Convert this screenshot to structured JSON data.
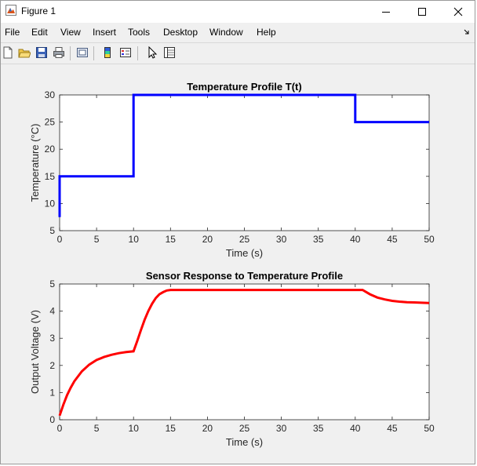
{
  "window": {
    "title": "Figure 1",
    "controls": {
      "minimize": "minimize",
      "maximize": "maximize",
      "close": "close"
    }
  },
  "menu": [
    "File",
    "Edit",
    "View",
    "Insert",
    "Tools",
    "Desktop",
    "Window",
    "Help"
  ],
  "toolbar_icons": [
    "new-figure-icon",
    "open-file-icon",
    "save-icon",
    "print-icon",
    "link-plot-icon",
    "insert-colorbar-icon",
    "insert-legend-icon",
    "edit-plot-icon",
    "property-inspector-icon"
  ],
  "colors": {
    "series1": "#0000ff",
    "series2": "#ff0000",
    "axes_bg": "#ffffff",
    "figure_bg": "#f0f0f0"
  },
  "chart_data": [
    {
      "type": "line",
      "title": "Temperature Profile T(t)",
      "xlabel": "Time (s)",
      "ylabel": "Temperature (°C)",
      "xlim": [
        0,
        50
      ],
      "ylim": [
        5,
        30
      ],
      "xticks": [
        0,
        5,
        10,
        15,
        20,
        25,
        30,
        35,
        40,
        45,
        50
      ],
      "yticks": [
        5,
        10,
        15,
        20,
        25,
        30
      ],
      "grid": false,
      "series": [
        {
          "color": "#0000ff",
          "x": [
            0,
            0,
            10,
            10,
            40,
            40,
            50
          ],
          "y": [
            7.5,
            15,
            15,
            30,
            30,
            25,
            25
          ]
        }
      ]
    },
    {
      "type": "line",
      "title": "Sensor Response to Temperature Profile",
      "xlabel": "Time (s)",
      "ylabel": "Output Voltage (V)",
      "xlim": [
        0,
        50
      ],
      "ylim": [
        0,
        5
      ],
      "xticks": [
        0,
        5,
        10,
        15,
        20,
        25,
        30,
        35,
        40,
        45,
        50
      ],
      "yticks": [
        0,
        1,
        2,
        3,
        4,
        5
      ],
      "grid": false,
      "series": [
        {
          "color": "#ff0000",
          "x": [
            0,
            0.5,
            1,
            1.5,
            2,
            3,
            4,
            5,
            6,
            7,
            8,
            9,
            10,
            10.5,
            11,
            11.5,
            12,
            12.5,
            13,
            13.5,
            14,
            14.5,
            15,
            20,
            25,
            30,
            35,
            40,
            41,
            42,
            43,
            44,
            45,
            46,
            47,
            48,
            49,
            50
          ],
          "y": [
            0.15,
            0.55,
            0.9,
            1.18,
            1.42,
            1.78,
            2.03,
            2.2,
            2.31,
            2.39,
            2.45,
            2.49,
            2.52,
            2.9,
            3.3,
            3.68,
            4.0,
            4.27,
            4.48,
            4.62,
            4.7,
            4.76,
            4.78,
            4.78,
            4.78,
            4.78,
            4.78,
            4.78,
            4.78,
            4.62,
            4.5,
            4.43,
            4.38,
            4.35,
            4.33,
            4.32,
            4.31,
            4.3
          ]
        }
      ]
    }
  ]
}
